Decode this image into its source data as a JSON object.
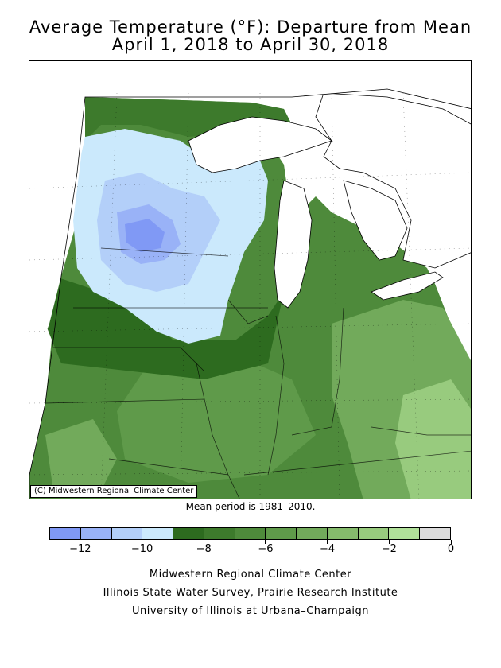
{
  "title": {
    "line1": "Average Temperature (°F): Departure from Mean",
    "line2": "April 1, 2018 to April 30, 2018"
  },
  "map": {
    "credit": "(C) Midwestern Regional Climate Center",
    "mean_period": "Mean period is 1981–2010."
  },
  "legend": {
    "bins": [
      {
        "from": -13,
        "to": -12,
        "color": "#8099f5"
      },
      {
        "from": -12,
        "to": -11,
        "color": "#99b2f7"
      },
      {
        "from": -11,
        "to": -10,
        "color": "#b3cff9"
      },
      {
        "from": -10,
        "to": -9,
        "color": "#cbe9fc"
      },
      {
        "from": -9,
        "to": -8,
        "color": "#2d6b1f"
      },
      {
        "from": -8,
        "to": -7,
        "color": "#3d7a2c"
      },
      {
        "from": -7,
        "to": -6,
        "color": "#4e8a3b"
      },
      {
        "from": -6,
        "to": -5,
        "color": "#5f9a4a"
      },
      {
        "from": -5,
        "to": -4,
        "color": "#72aa5b"
      },
      {
        "from": -4,
        "to": -3,
        "color": "#85bb6c"
      },
      {
        "from": -3,
        "to": -2,
        "color": "#98cb7e"
      },
      {
        "from": -2,
        "to": -1,
        "color": "#b1e19a"
      },
      {
        "from": -1,
        "to": 0,
        "color": "#dcdcdc"
      }
    ],
    "ticks": [
      {
        "value": -12,
        "label": "−12"
      },
      {
        "value": -10,
        "label": "−10"
      },
      {
        "value": -8,
        "label": "−8"
      },
      {
        "value": -6,
        "label": "−6"
      },
      {
        "value": -4,
        "label": "−4"
      },
      {
        "value": -2,
        "label": "−2"
      },
      {
        "value": 0,
        "label": "0"
      }
    ],
    "range": [
      -13,
      0
    ]
  },
  "footer": {
    "line1": "Midwestern Regional Climate Center",
    "line2": "Illinois State Water Survey, Prairie Research Institute",
    "line3": "University of Illinois at Urbana–Champaign"
  }
}
